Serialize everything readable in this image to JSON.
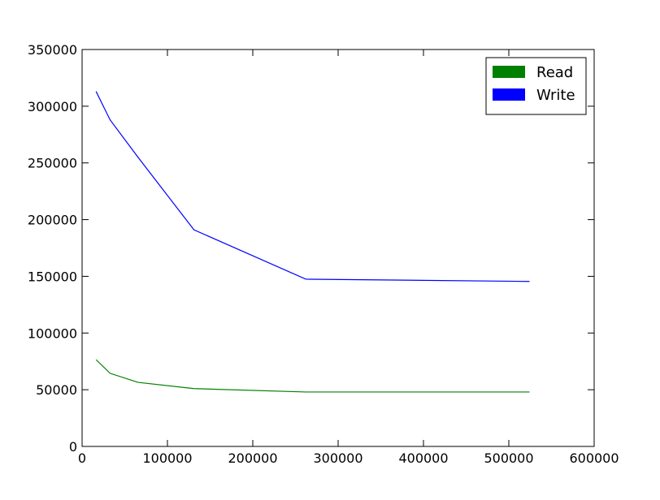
{
  "chart_data": {
    "type": "line",
    "x": [
      16384,
      32768,
      65536,
      131072,
      262144,
      524288
    ],
    "series": [
      {
        "name": "Read",
        "color": "#008000",
        "values": [
          76500,
          64500,
          56500,
          51000,
          48000,
          48000
        ]
      },
      {
        "name": "Write",
        "color": "#0000ff",
        "values": [
          313000,
          288000,
          255000,
          191000,
          147500,
          145500
        ]
      }
    ],
    "xlim": [
      0,
      600000
    ],
    "xticks": [
      0,
      100000,
      200000,
      300000,
      400000,
      500000,
      600000
    ],
    "ylim": [
      0,
      350000
    ],
    "yticks": [
      0,
      50000,
      100000,
      150000,
      200000,
      250000,
      300000,
      350000
    ],
    "legend": "upper right"
  }
}
